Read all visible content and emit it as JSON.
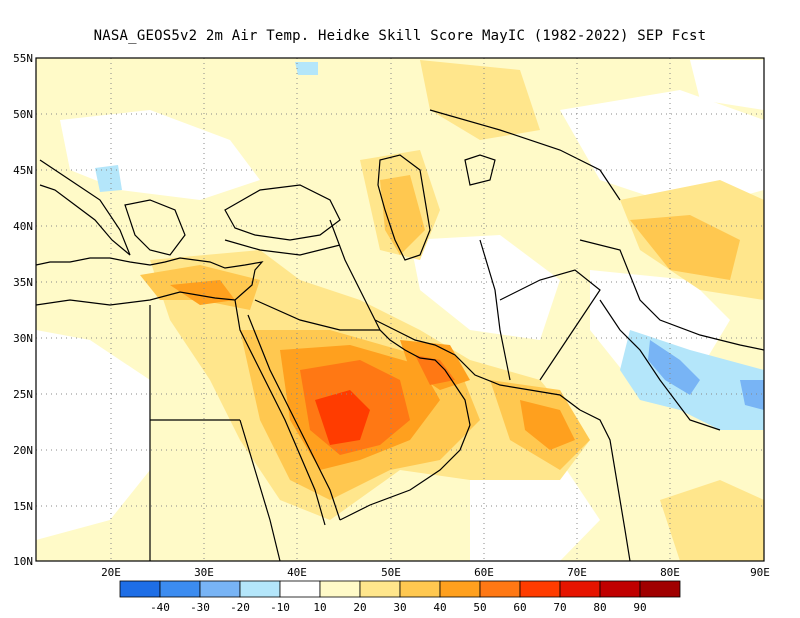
{
  "title": "NASA_GEOS5v2  2m Air Temp. Heidke Skill Score MayIC (1982-2022) SEP Fcst",
  "map": {
    "lat_labels": [
      "55N",
      "50N",
      "45N",
      "40N",
      "35N",
      "30N",
      "25N",
      "20N",
      "15N",
      "10N"
    ],
    "lon_labels": [
      "20E",
      "30E",
      "40E",
      "50E",
      "60E",
      "70E",
      "80E",
      "90E"
    ],
    "lon_range": [
      12,
      90
    ],
    "lat_range": [
      10,
      55
    ],
    "grid_style": "dotted",
    "background_color": "#ffffff"
  },
  "colorbar": {
    "tick_labels": [
      "-40",
      "-30",
      "-20",
      "-10",
      "10",
      "20",
      "30",
      "40",
      "50",
      "60",
      "70",
      "80",
      "90"
    ],
    "bins": [
      {
        "label": "<=-40",
        "color": "#1e6ee6"
      },
      {
        "label": "-40..-30",
        "color": "#3c8cf0"
      },
      {
        "label": "-30..-20",
        "color": "#78b4f5"
      },
      {
        "label": "-20..-10",
        "color": "#b4e6fa"
      },
      {
        "label": "-10..10",
        "color": "#ffffff"
      },
      {
        "label": "10..20",
        "color": "#fffac8"
      },
      {
        "label": "20..30",
        "color": "#ffe68c"
      },
      {
        "label": "30..40",
        "color": "#ffc850"
      },
      {
        "label": "40..50",
        "color": "#ffa01e"
      },
      {
        "label": "50..60",
        "color": "#ff7814"
      },
      {
        "label": "60..70",
        "color": "#ff3c00"
      },
      {
        "label": "70..80",
        "color": "#e61400"
      },
      {
        "label": "80..90",
        "color": "#c00000"
      },
      {
        "label": ">=90",
        "color": "#a00000"
      }
    ]
  },
  "skill_regions": [
    {
      "name": "arabia-core",
      "value": 65,
      "color": "#ff3c00"
    },
    {
      "name": "arabia-surround",
      "value": 50,
      "color": "#ff7814"
    },
    {
      "name": "persian-gulf",
      "value": 50,
      "color": "#ff7814"
    },
    {
      "name": "pakistan-south",
      "value": 45,
      "color": "#ffa01e"
    },
    {
      "name": "egypt-levant",
      "value": 40,
      "color": "#ffa01e"
    },
    {
      "name": "caspian",
      "value": 40,
      "color": "#ffa01e"
    },
    {
      "name": "china-west",
      "value": 35,
      "color": "#ffc850"
    },
    {
      "name": "india-east-negative",
      "value": -25,
      "color": "#78b4f5"
    }
  ]
}
